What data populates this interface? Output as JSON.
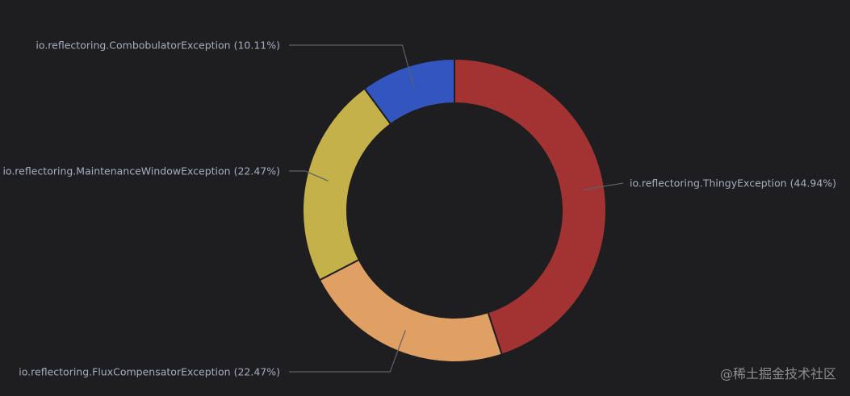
{
  "chart_data": {
    "type": "pie",
    "variant": "donut",
    "slices": [
      {
        "label": "io.reflectoring.ThingyException",
        "percent_label": "44.94%",
        "value": 44.94,
        "color": "#a33233"
      },
      {
        "label": "io.reflectoring.FluxCompensatorException",
        "percent_label": "22.47%",
        "value": 22.47,
        "color": "#e0a064"
      },
      {
        "label": "io.reflectoring.MaintenanceWindowException",
        "percent_label": "22.47%",
        "value": 22.47,
        "color": "#c4b14a"
      },
      {
        "label": "io.reflectoring.CombobulatorException",
        "percent_label": "10.11%",
        "value": 10.11,
        "color": "#3255c0"
      }
    ],
    "legend": "none",
    "label_placement": "outside-with-leader-lines"
  },
  "colors": {
    "background": "#1e1e21",
    "label_text": "#a5adbf",
    "leader_line": "#5e6066",
    "slice_border": "#1e1e21"
  },
  "watermark": "@稀土掘金技术社区"
}
